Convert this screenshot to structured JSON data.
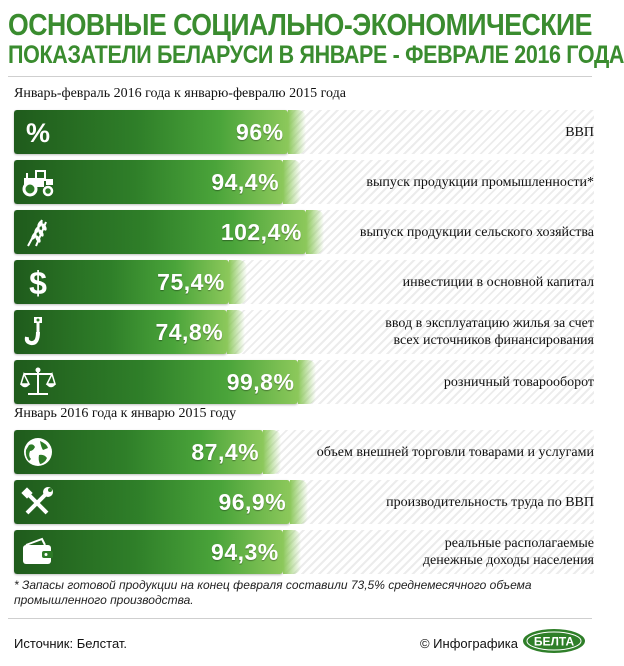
{
  "title": {
    "line1": "ОСНОВНЫЕ СОЦИАЛЬНО-ЭКОНОМИЧЕСКИЕ",
    "line2": "ПОКАЗАТЕЛИ БЕЛАРУСИ В ЯНВАРЕ - ФЕВРАЛЕ 2016 ГОДА"
  },
  "colors": {
    "title": "#3a8c2f",
    "bar_dark": "#1f5b1c",
    "bar_light": "#8cc85b"
  },
  "chart_data": {
    "type": "bar",
    "sections": [
      {
        "heading": "Январь-февраль 2016 года к январю-февралю 2015 года",
        "rows": [
          {
            "icon": "percent-icon",
            "value": 96,
            "display": "96%",
            "label": [
              "ВВП"
            ]
          },
          {
            "icon": "tractor-icon",
            "value": 94.4,
            "display": "94,4%",
            "label": [
              "выпуск продукции промышленности*"
            ]
          },
          {
            "icon": "wheat-icon",
            "value": 102.4,
            "display": "102,4%",
            "label": [
              "выпуск продукции сельского хозяйства"
            ]
          },
          {
            "icon": "dollar-icon",
            "value": 75.4,
            "display": "75,4%",
            "label": [
              "инвестиции в основной капитал"
            ]
          },
          {
            "icon": "crane-hook-icon",
            "value": 74.8,
            "display": "74,8%",
            "label": [
              "ввод в эксплуатацию жилья за счет",
              "всех источников финансирования"
            ]
          },
          {
            "icon": "scales-icon",
            "value": 99.8,
            "display": "99,8%",
            "label": [
              "розничный товарооборот"
            ]
          }
        ]
      },
      {
        "heading": "Январь 2016 года к январю 2015 году",
        "rows": [
          {
            "icon": "globe-icon",
            "value": 87.4,
            "display": "87,4%",
            "label": [
              "объем внешней торговли товарами и услугами"
            ]
          },
          {
            "icon": "tools-icon",
            "value": 96.9,
            "display": "96,9%",
            "label": [
              "производительность труда по ВВП"
            ]
          },
          {
            "icon": "wallet-icon",
            "value": 94.3,
            "display": "94,3%",
            "label": [
              "реальные располагаемые",
              "денежные доходы населения"
            ]
          }
        ]
      }
    ]
  },
  "footnote": "* Запасы готовой продукции на конец февраля составили 73,5% среднемесячного объема промышленного производства.",
  "source": "Источник: Белстат.",
  "credit": "© Инфографика",
  "logo_text": "БЕЛТА"
}
